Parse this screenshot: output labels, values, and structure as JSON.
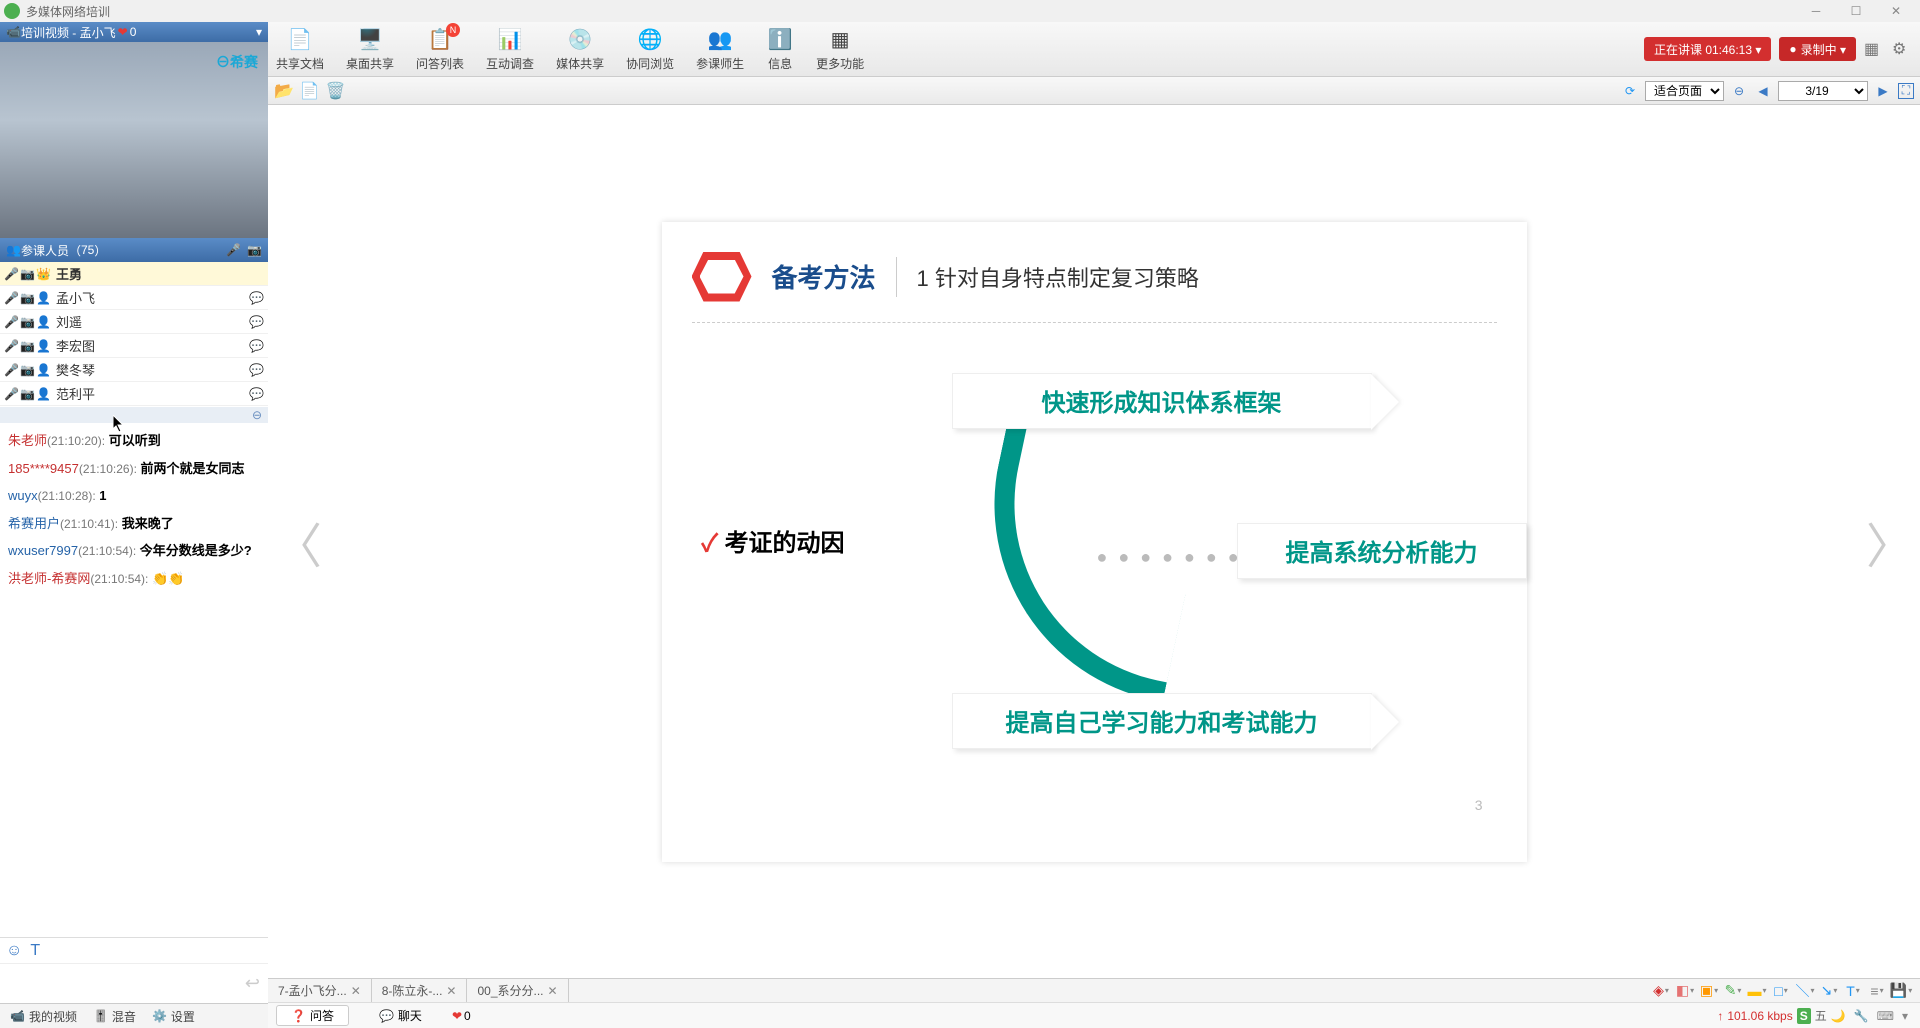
{
  "window": {
    "title": "多媒体网络培训"
  },
  "video_header": {
    "label": "培训视频 - 孟小飞",
    "heart_count": 0
  },
  "video": {
    "logo": "⊖希赛"
  },
  "attendee_header": {
    "label": "参课人员",
    "count": 75
  },
  "attendees": [
    {
      "name": "王勇",
      "self": true,
      "crown": true
    },
    {
      "name": "孟小飞",
      "talking": true
    },
    {
      "name": "刘遥",
      "talking": true
    },
    {
      "name": "李宏图",
      "talking": true
    },
    {
      "name": "樊冬琴",
      "talking": true
    },
    {
      "name": "范利平",
      "talking": true
    }
  ],
  "chat": [
    {
      "user": "朱老师",
      "user_color": "red",
      "time": "(21:10:20)",
      "text": "可以听到"
    },
    {
      "user": "185****9457",
      "user_color": "red",
      "time": "(21:10:26)",
      "text": "前两个就是女同志"
    },
    {
      "user": "wuyx",
      "user_color": "blue",
      "time": "(21:10:28)",
      "text": "1"
    },
    {
      "user": "希赛用户",
      "user_color": "blue",
      "time": "(21:10:41)",
      "text": "我来晚了"
    },
    {
      "user": "wxuser7997",
      "user_color": "blue",
      "time": "(21:10:54)",
      "text": "今年分数线是多少?"
    },
    {
      "user": "洪老师-希赛网",
      "user_color": "red",
      "time": "(21:10:54)",
      "text": "👏👏"
    }
  ],
  "left_bottom_tabs": {
    "video": "我的视频",
    "mix": "混音",
    "settings": "设置"
  },
  "toolbar": {
    "items": [
      {
        "label": "共享文档",
        "icon": "📄"
      },
      {
        "label": "桌面共享",
        "icon": "🖥️"
      },
      {
        "label": "问答列表",
        "icon": "📋",
        "badge": "N"
      },
      {
        "label": "互动调查",
        "icon": "📊"
      },
      {
        "label": "媒体共享",
        "icon": "💿"
      },
      {
        "label": "协同浏览",
        "icon": "🌐"
      },
      {
        "label": "参课师生",
        "icon": "👥"
      },
      {
        "label": "信息",
        "icon": "ℹ️"
      },
      {
        "label": "更多功能",
        "icon": "▦"
      }
    ],
    "status_lecture": "正在讲课 01:46:13 ▾",
    "status_recording": "录制中 ▾"
  },
  "doc_toolbar": {
    "zoom_label": "适合页面",
    "page_label": "3/19"
  },
  "slide": {
    "badge_title": "备考方法",
    "subtitle": "1 针对自身特点制定复习策略",
    "motive_label": "考证的动因",
    "box_top": "快速形成知识体系框架",
    "box_mid": "提高系统分析能力",
    "box_bot": "提高自己学习能力和考试能力",
    "page_number": "3"
  },
  "bottom_tabs": [
    {
      "label": "7-孟小飞分..."
    },
    {
      "label": "8-陈立永-..."
    },
    {
      "label": "00_系分分..."
    }
  ],
  "annotation_tools": [
    {
      "name": "target-icon",
      "glyph": "◈",
      "color": "#d32f2f"
    },
    {
      "name": "eraser-icon",
      "glyph": "◧",
      "color": "#e57373"
    },
    {
      "name": "shape-icon",
      "glyph": "▣",
      "color": "#ff9800"
    },
    {
      "name": "brush-icon",
      "glyph": "✎",
      "color": "#4caf50"
    },
    {
      "name": "highlight-icon",
      "glyph": "▬",
      "color": "#ffc107"
    },
    {
      "name": "rect-icon",
      "glyph": "□",
      "color": "#2196f3"
    },
    {
      "name": "line-icon",
      "glyph": "＼",
      "color": "#2196f3"
    },
    {
      "name": "arrow-icon",
      "glyph": "↘",
      "color": "#2196f3"
    },
    {
      "name": "text-icon",
      "glyph": "T",
      "color": "#2196f3"
    },
    {
      "name": "more-icon",
      "glyph": "≡",
      "color": "#888"
    },
    {
      "name": "save-icon",
      "glyph": "💾",
      "color": "#888"
    }
  ],
  "status": {
    "qa": "问答",
    "chat": "聊天",
    "heart": 0,
    "net_speed": "101.06 kbps",
    "ime": "S",
    "ime_lang": "五"
  },
  "colors": {
    "panel_blue": "#3e6da8",
    "accent_teal": "#009688",
    "accent_red": "#e53935",
    "title_blue": "#1a4d8c"
  }
}
